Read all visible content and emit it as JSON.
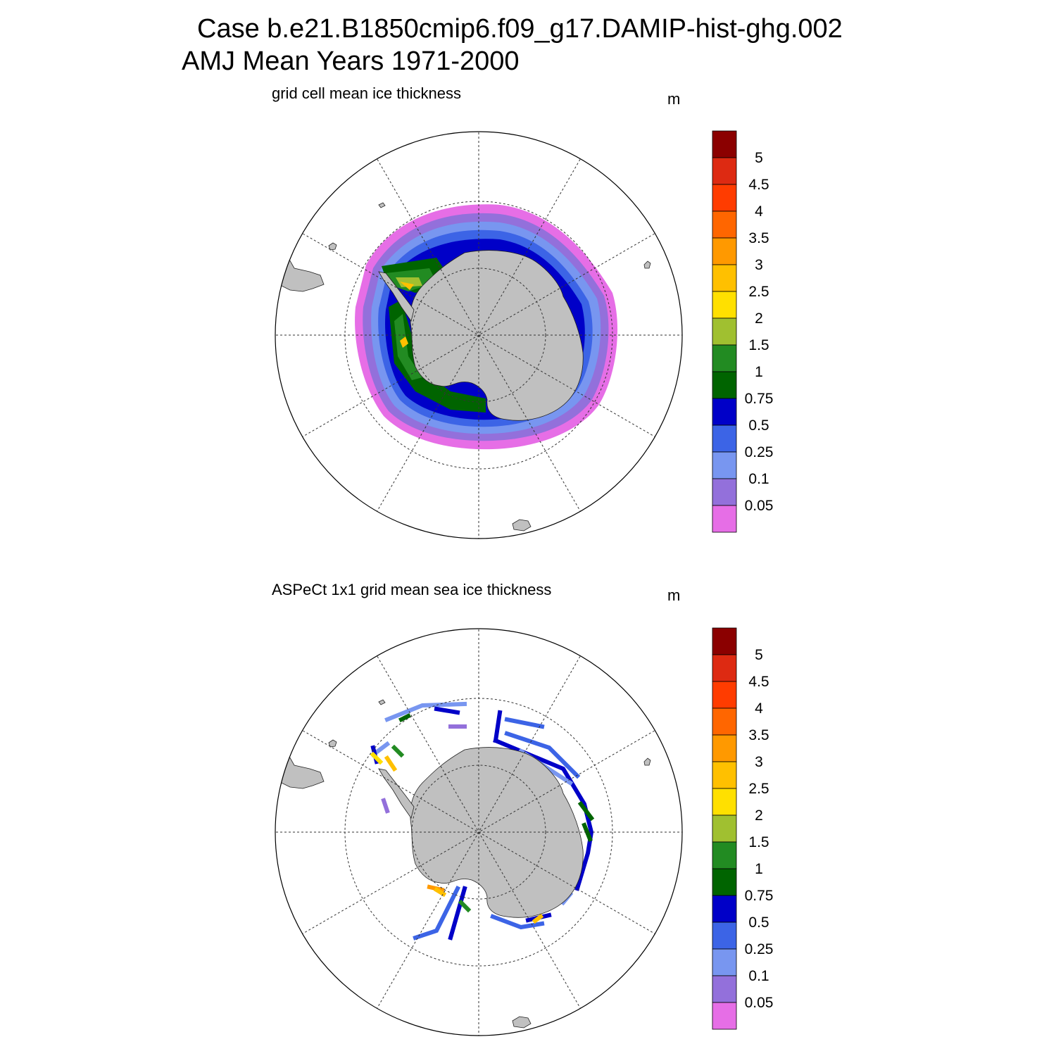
{
  "title": {
    "line1": "Case b.e21.B1850cmip6.f09_g17.DAMIP-hist-ghg.002",
    "line2": "AMJ Mean   Years 1971-2000"
  },
  "panels": [
    {
      "title": "grid cell mean ice thickness",
      "units": "m"
    },
    {
      "title": "ASPeCt 1x1 grid mean sea ice thickness",
      "units": "m"
    }
  ],
  "colorbar": {
    "labels": [
      "5",
      "4.5",
      "4",
      "3.5",
      "3",
      "2.5",
      "2",
      "1.5",
      "1",
      "0.75",
      "0.5",
      "0.25",
      "0.1",
      "0.05"
    ],
    "colors_top_to_bottom": [
      "#8b0000",
      "#dd2a12",
      "#ff3c00",
      "#ff6600",
      "#ff9900",
      "#ffc000",
      "#ffe000",
      "#a0c030",
      "#228b22",
      "#006400",
      "#0000c8",
      "#3c64e6",
      "#7896f0",
      "#9370db",
      "#e66ee6"
    ]
  },
  "land_color": "#c0c0c0"
}
